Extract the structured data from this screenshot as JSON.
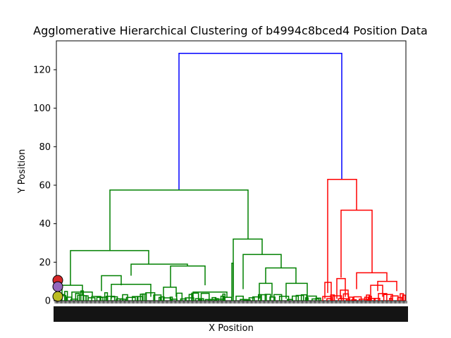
{
  "chart_data": {
    "type": "dendrogram",
    "title": "Agglomerative Hierarchical Clustering of b4994c8bced4 Position Data",
    "xlabel": "X Position",
    "ylabel": "Y Position",
    "ylim": [
      0,
      135
    ],
    "yticks": [
      0,
      20,
      40,
      60,
      80,
      100,
      120
    ],
    "leaf_labels_visible": true,
    "grid": false,
    "legend": "none",
    "colors": {
      "root": "#0000ff",
      "cluster_left": "#008000",
      "cluster_right": "#ff0000"
    },
    "merges": [
      {
        "name": "root",
        "height": 128.5,
        "color": "blue",
        "children": [
          "green-top",
          "red-top"
        ]
      },
      {
        "name": "green-top",
        "height": 57.5,
        "color": "green",
        "children": [
          "green-a",
          "green-b"
        ]
      },
      {
        "name": "green-a",
        "height": 26,
        "color": "green",
        "children": [
          "green-a1",
          "green-a2"
        ]
      },
      {
        "name": "green-a2",
        "height": 19,
        "color": "green"
      },
      {
        "name": "green-a2-right",
        "height": 18,
        "color": "green"
      },
      {
        "name": "green-a2-left",
        "height": 13,
        "color": "green"
      },
      {
        "name": "green-b",
        "height": 32,
        "color": "green"
      },
      {
        "name": "green-b2",
        "height": 24,
        "color": "green"
      },
      {
        "name": "green-b3",
        "height": 17,
        "color": "green"
      },
      {
        "name": "red-top",
        "height": 63,
        "color": "red",
        "children": [
          "red-a",
          "red-b"
        ]
      },
      {
        "name": "red-b",
        "height": 47,
        "color": "red"
      },
      {
        "name": "red-b2",
        "height": 14.5,
        "color": "red"
      },
      {
        "name": "red-b3",
        "height": 10,
        "color": "red"
      }
    ],
    "marker_colors": [
      "#d62728",
      "#9467bd",
      "#bcbd22"
    ]
  }
}
